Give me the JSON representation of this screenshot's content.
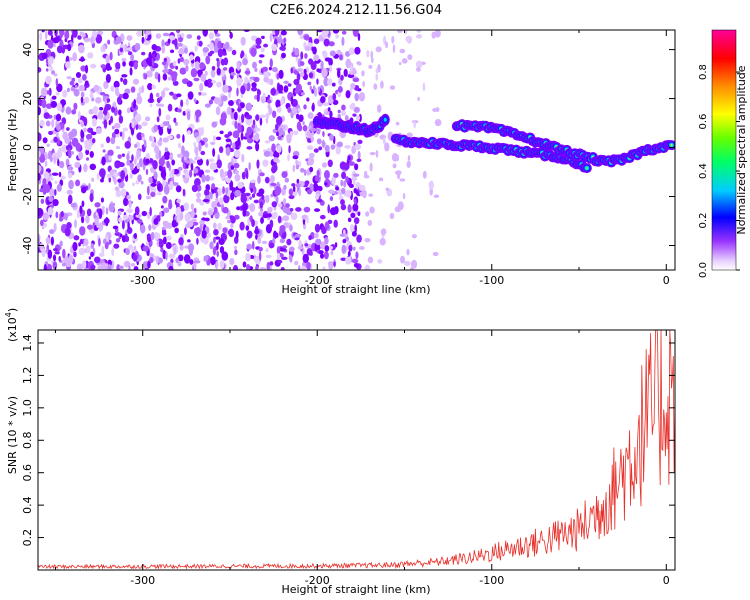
{
  "title": "C2E6.2024.212.11.56.G04",
  "chart_data": [
    {
      "type": "heatmap",
      "xlabel": "Height of straight line (km)",
      "ylabel": "Frequency (Hz)",
      "xlim": [
        -360,
        5
      ],
      "ylim": [
        -50,
        48
      ],
      "xticks": [
        -300,
        -200,
        -100,
        0
      ],
      "yticks": [
        -40,
        -20,
        0,
        20,
        40
      ],
      "colorbar": {
        "label": "Normalized spectral amplitude",
        "range": [
          0.0,
          0.97
        ],
        "ticks": [
          0.0,
          0.2,
          0.4,
          0.6,
          0.8
        ]
      },
      "ridge_upper": {
        "x": [
          -120,
          -100,
          -80,
          -60,
          -45,
          -35,
          -25,
          -15,
          -5,
          3
        ],
        "y": [
          9,
          8,
          4,
          -1,
          -4,
          -6,
          -5,
          -2,
          0,
          1
        ]
      },
      "ridge_lower": {
        "x": [
          -155,
          -140,
          -120,
          -100,
          -80,
          -60,
          -45
        ],
        "y": [
          3,
          2,
          1,
          0,
          -2,
          -4,
          -8
        ]
      },
      "ridge_early": {
        "x": [
          -200,
          -185,
          -170,
          -160
        ],
        "y": [
          10,
          9,
          7,
          11
        ]
      }
    },
    {
      "type": "line",
      "xlabel": "Height of straight line (km)",
      "ylabel": "SNR (10 * v/v)",
      "y_multiplier": "(x10",
      "y_multiplier_exp": "4",
      "y_multiplier_close": ")",
      "xlim": [
        -360,
        5
      ],
      "ylim": [
        0,
        1.48
      ],
      "xticks": [
        -300,
        -200,
        -100,
        0
      ],
      "yticks": [
        0.2,
        0.4,
        0.6,
        0.8,
        1.0,
        1.2,
        1.4
      ],
      "series": [
        {
          "color": "#e8302a",
          "envelope": {
            "x": [
              -360,
              -200,
              -160,
              -130,
              -110,
              -90,
              -70,
              -50,
              -40,
              -30,
              -20,
              -10,
              0,
              5
            ],
            "y": [
              0.02,
              0.025,
              0.03,
              0.05,
              0.08,
              0.13,
              0.18,
              0.25,
              0.35,
              0.5,
              0.7,
              0.95,
              1.08,
              1.12
            ]
          }
        }
      ]
    }
  ]
}
